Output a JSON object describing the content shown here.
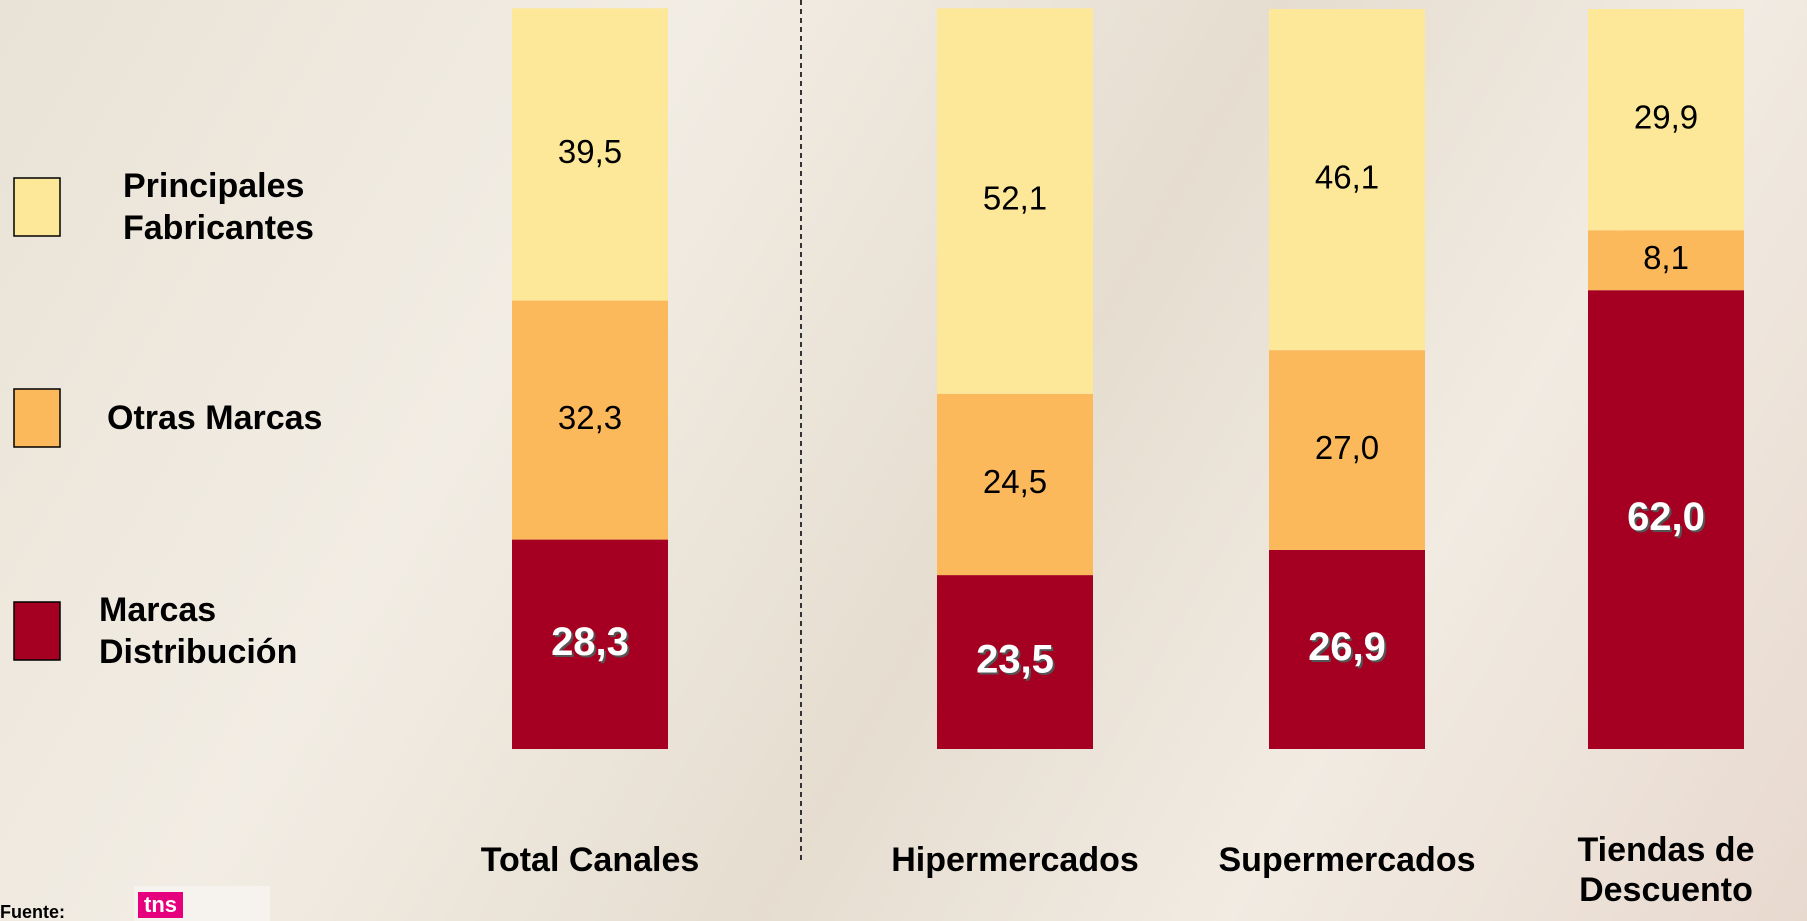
{
  "chart_data": {
    "type": "stacked_bar",
    "categories": [
      "Total Canales",
      "Hipermercados",
      "Supermercados",
      "Tiendas de Descuento"
    ],
    "series": [
      {
        "name": "Marcas Distribución",
        "color": "#a50021",
        "values": [
          28.3,
          23.5,
          26.9,
          62.0
        ],
        "value_labels": [
          "28,3",
          "23,5",
          "26,9",
          "62,0"
        ]
      },
      {
        "name": "Otras Marcas",
        "color": "#fbb95c",
        "values": [
          32.3,
          24.5,
          27.0,
          8.1
        ],
        "value_labels": [
          "32,3",
          "24,5",
          "27,0",
          "8,1"
        ]
      },
      {
        "name": "Principales Fabricantes",
        "color": "#fde89a",
        "values": [
          39.5,
          52.1,
          46.1,
          29.9
        ],
        "value_labels": [
          "39,5",
          "52,1",
          "46,1",
          "29,9"
        ]
      }
    ],
    "ylim": [
      0,
      100
    ],
    "source": "Fuente:",
    "source_logo": "tns"
  }
}
